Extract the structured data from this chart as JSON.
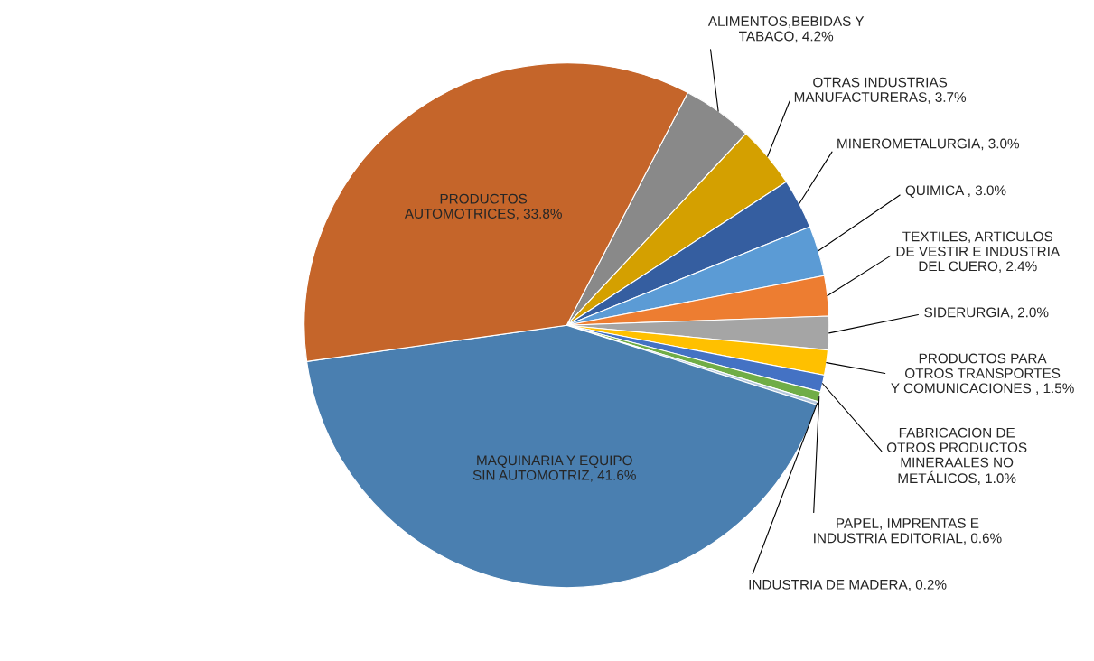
{
  "chart_data": {
    "type": "pie",
    "categories": [
      "ALIMENTOS,BEBIDAS Y\nTABACO",
      "OTRAS INDUSTRIAS\nMANUFACTURERAS",
      "MINEROMETALURGIA",
      "QUIMICA ",
      "TEXTILES, ARTICULOS\nDE VESTIR E INDUSTRIA\nDEL CUERO",
      "SIDERURGIA",
      "PRODUCTOS PARA\nOTROS TRANSPORTES\nY COMUNICACIONES ",
      "FABRICACION DE\nOTROS PRODUCTOS\nMINERAALES NO\nMETÁLICOS",
      "PAPEL, IMPRENTAS E\nINDUSTRIA EDITORIAL",
      "INDUSTRIA DE MADERA",
      "MAQUINARIA Y EQUIPO\nSIN AUTOMOTRIZ",
      "PRODUCTOS\nAUTOMOTRICES"
    ],
    "values": [
      4.2,
      3.7,
      3.0,
      3.0,
      2.4,
      2.0,
      1.5,
      1.0,
      0.6,
      0.2,
      41.6,
      33.8
    ],
    "value_labels": [
      "4.2%",
      "3.7%",
      "3.0%",
      "3.0%",
      "2.4%",
      "2.0%",
      "1.5%",
      "1.0%",
      "0.6%",
      "0.2%",
      "41.6%",
      "33.8%"
    ],
    "colors": [
      "#898989",
      "#d4a000",
      "#355ea0",
      "#5b9bd5",
      "#ed7d31",
      "#a5a5a5",
      "#ffc000",
      "#4472c4",
      "#70ad47",
      "#b4c7dc",
      "#4a7fb0",
      "#c5652a"
    ]
  }
}
